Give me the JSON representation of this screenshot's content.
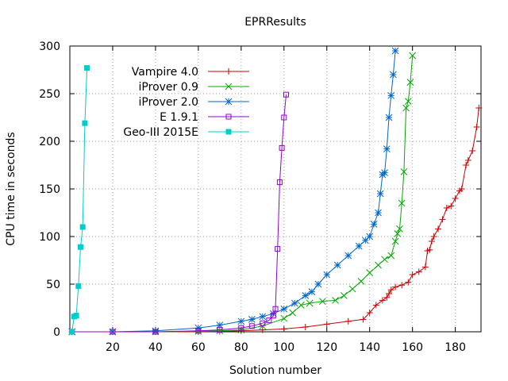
{
  "chart_data": {
    "type": "line",
    "title": "EPRResults",
    "xlabel": "Solution number",
    "ylabel": "CPU time in seconds",
    "xlim": [
      0,
      192
    ],
    "ylim": [
      0,
      300
    ],
    "xticks": [
      20,
      40,
      60,
      80,
      100,
      120,
      140,
      160,
      180
    ],
    "yticks": [
      0,
      50,
      100,
      150,
      200,
      250,
      300
    ],
    "grid": true,
    "legend": "top-left",
    "series": [
      {
        "name": "Vampire 4.0",
        "color": "#cc0000",
        "marker": "plus",
        "x": [
          1,
          20,
          40,
          60,
          70,
          80,
          90,
          100,
          110,
          120,
          130,
          137,
          140,
          143,
          146,
          148,
          149,
          150,
          152,
          155,
          158,
          160,
          163,
          166,
          167,
          168,
          169,
          170,
          172,
          174,
          176,
          178,
          180,
          182,
          183,
          185,
          186,
          188,
          190,
          191
        ],
        "y": [
          0,
          0,
          0,
          0,
          0.5,
          1,
          2,
          3,
          5,
          8,
          11,
          13,
          20,
          28,
          33,
          36,
          40,
          44,
          47,
          49,
          52,
          60,
          63,
          68,
          85,
          86,
          95,
          100,
          108,
          118,
          130,
          132,
          140,
          148,
          150,
          175,
          180,
          190,
          215,
          235
        ]
      },
      {
        "name": "iProver 0.9",
        "color": "#00aa00",
        "marker": "x",
        "x": [
          1,
          20,
          40,
          60,
          70,
          80,
          90,
          100,
          104,
          108,
          112,
          118,
          124,
          128,
          132,
          136,
          140,
          144,
          147,
          150,
          152,
          153,
          154,
          155,
          156,
          157,
          158,
          159,
          160
        ],
        "y": [
          0,
          0,
          0,
          0.5,
          1,
          2,
          6,
          14,
          20,
          28,
          30,
          32,
          33,
          38,
          45,
          53,
          62,
          70,
          76,
          80,
          95,
          103,
          108,
          135,
          168,
          235,
          242,
          262,
          290
        ]
      },
      {
        "name": "iProver 2.0",
        "color": "#0066cc",
        "marker": "star",
        "x": [
          1,
          20,
          40,
          60,
          70,
          80,
          85,
          90,
          95,
          100,
          105,
          110,
          113,
          116,
          120,
          125,
          130,
          135,
          138,
          140,
          142,
          144,
          145,
          146,
          147,
          148,
          149,
          150,
          151,
          152
        ],
        "y": [
          0,
          0,
          1,
          4,
          7,
          11,
          13,
          16,
          19,
          24,
          30,
          38,
          42,
          50,
          60,
          70,
          80,
          90,
          96,
          100,
          113,
          125,
          145,
          165,
          167,
          192,
          225,
          248,
          270,
          295
        ]
      },
      {
        "name": "E 1.9.1",
        "color": "#9400d3",
        "marker": "square",
        "x": [
          1,
          20,
          40,
          60,
          70,
          80,
          85,
          90,
          93,
          95,
          96,
          97,
          98,
          99,
          100,
          101
        ],
        "y": [
          0,
          0,
          0,
          1,
          2,
          4,
          6,
          9,
          12,
          17,
          24,
          87,
          157,
          193,
          225,
          249
        ]
      },
      {
        "name": "Geo-III 2015E",
        "color": "#00cccc",
        "marker": "filled-square",
        "x": [
          1,
          2,
          3,
          4,
          5,
          6,
          7,
          8
        ],
        "y": [
          0,
          16,
          17,
          48,
          89,
          110,
          219,
          277
        ]
      }
    ]
  }
}
